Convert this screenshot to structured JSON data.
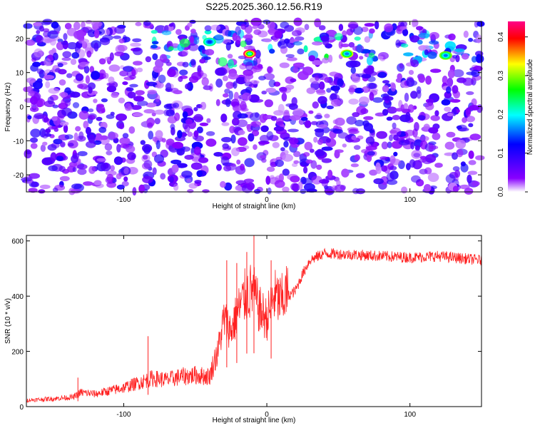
{
  "title": "S225.2025.360.12.56.R19",
  "chart_data": [
    {
      "type": "heatmap",
      "xlabel": "Height of straight line (km)",
      "ylabel": "Frequency (Hz)",
      "xlim": [
        -168,
        150
      ],
      "ylim": [
        -25,
        25
      ],
      "x_ticks": [
        -100,
        0,
        100
      ],
      "y_ticks": [
        -20,
        -10,
        0,
        10,
        20
      ],
      "colorbar": {
        "label": "Normalized spectral amplitude",
        "range": [
          0.0,
          0.44
        ],
        "ticks": [
          "0.0",
          "0.1",
          "0.2",
          "0.3",
          "0.4"
        ],
        "colormap": [
          "#ffffff",
          "#8800ff",
          "#0000ff",
          "#00ffff",
          "#00ff00",
          "#ffff00",
          "#ff0000",
          "#ff00aa"
        ]
      },
      "features": {
        "band_frequency_range_hz": [
          12,
          22
        ],
        "band_x_range_km": [
          -90,
          150
        ],
        "hotspots": [
          {
            "x": -12,
            "y": 15.5,
            "amp": 0.42
          },
          {
            "x": 56,
            "y": 15.5,
            "amp": 0.3
          },
          {
            "x": 125,
            "y": 15,
            "amp": 0.28
          },
          {
            "x": -40,
            "y": 19,
            "amp": 0.22
          }
        ],
        "pale_columns_km": [
          -38,
          -88,
          55,
          122
        ]
      }
    },
    {
      "type": "line",
      "xlabel": "Height of straight line (km)",
      "ylabel": "SNR (10 * v/v)",
      "xlim": [
        -168,
        150
      ],
      "ylim": [
        0,
        620
      ],
      "x_ticks": [
        -100,
        0,
        100
      ],
      "y_ticks": [
        0,
        200,
        400,
        600
      ],
      "color": "#ff2020",
      "x": [
        -168,
        -150,
        -135,
        -130,
        -120,
        -100,
        -90,
        -80,
        -70,
        -60,
        -50,
        -40,
        -35,
        -30,
        -25,
        -20,
        -15,
        -10,
        -5,
        0,
        5,
        10,
        15,
        20,
        25,
        30,
        40,
        60,
        80,
        100,
        120,
        140,
        150
      ],
      "y": [
        20,
        25,
        30,
        45,
        40,
        60,
        75,
        90,
        85,
        95,
        100,
        95,
        170,
        300,
        260,
        330,
        380,
        400,
        330,
        300,
        380,
        360,
        400,
        420,
        480,
        530,
        555,
        550,
        545,
        540,
        545,
        535,
        530
      ],
      "spikes": [
        {
          "x": -132,
          "y": 105
        },
        {
          "x": -83,
          "y": 255
        },
        {
          "x": -28,
          "y": 530
        },
        {
          "x": -21,
          "y": 520
        },
        {
          "x": -9,
          "y": 620
        },
        {
          "x": -14,
          "y": 560
        },
        {
          "x": 3,
          "y": 530
        }
      ]
    }
  ]
}
